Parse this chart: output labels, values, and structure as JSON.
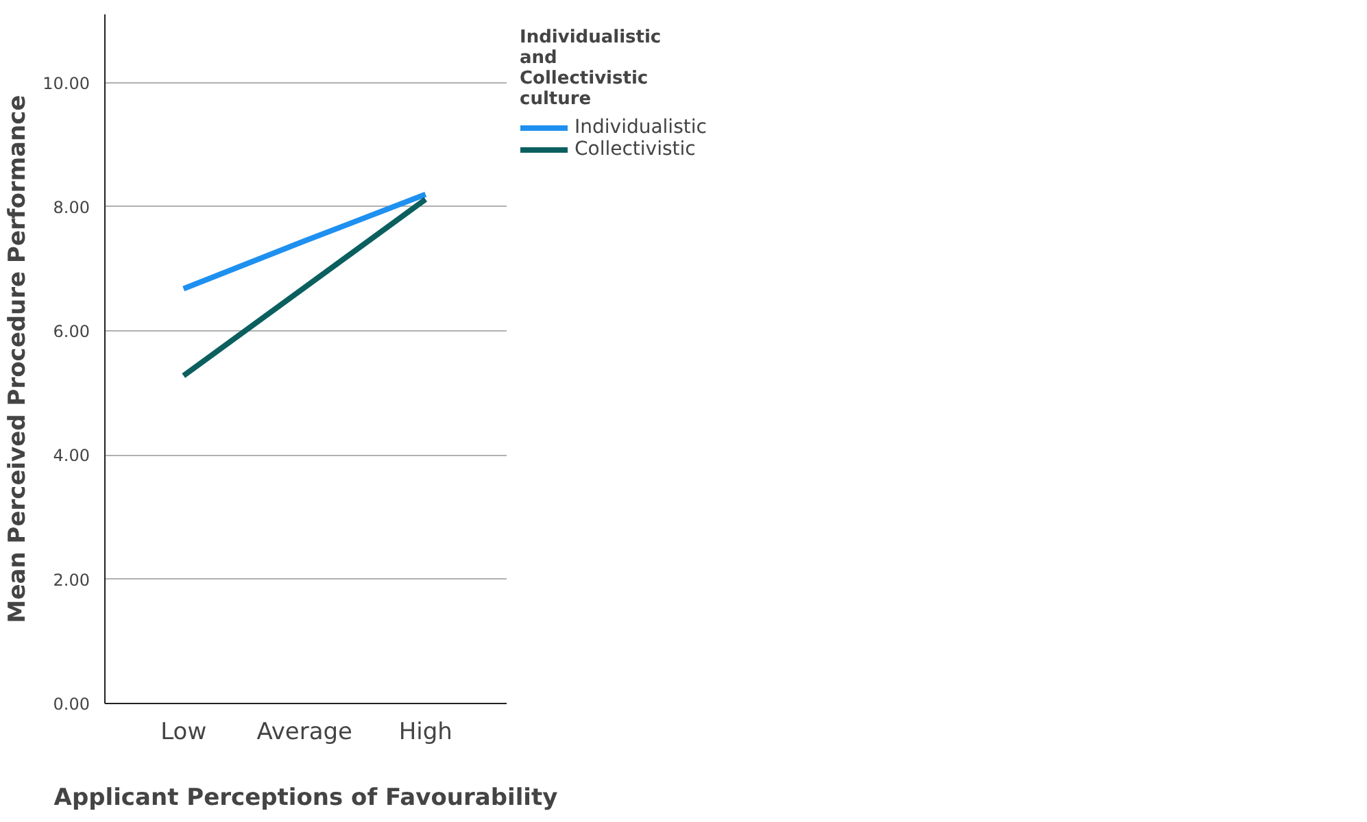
{
  "chart_data": {
    "type": "line",
    "xlabel": "Applicant Perceptions of Favourability",
    "ylabel": "Mean Perceived Procedure Performance",
    "legend_title": "Individualistic and Collectivistic culture",
    "categories": [
      "Low",
      "Average",
      "High"
    ],
    "series": [
      {
        "name": "Individualistic",
        "color": "#1e90f0",
        "values": [
          6.68,
          7.45,
          8.2
        ]
      },
      {
        "name": "Collectivistic",
        "color": "#0b5f5f",
        "values": [
          5.28,
          6.7,
          8.12
        ]
      }
    ],
    "ylim": [
      0,
      11.1
    ],
    "yticks": [
      {
        "value": 0,
        "label": "0.00"
      },
      {
        "value": 2,
        "label": "2.00"
      },
      {
        "value": 4,
        "label": "4.00"
      },
      {
        "value": 6,
        "label": "6.00"
      },
      {
        "value": 8,
        "label": "8.00"
      },
      {
        "value": 10,
        "label": "10.00"
      }
    ],
    "grid": "y",
    "legend": "right",
    "marker": "none",
    "line_style": "solid"
  }
}
